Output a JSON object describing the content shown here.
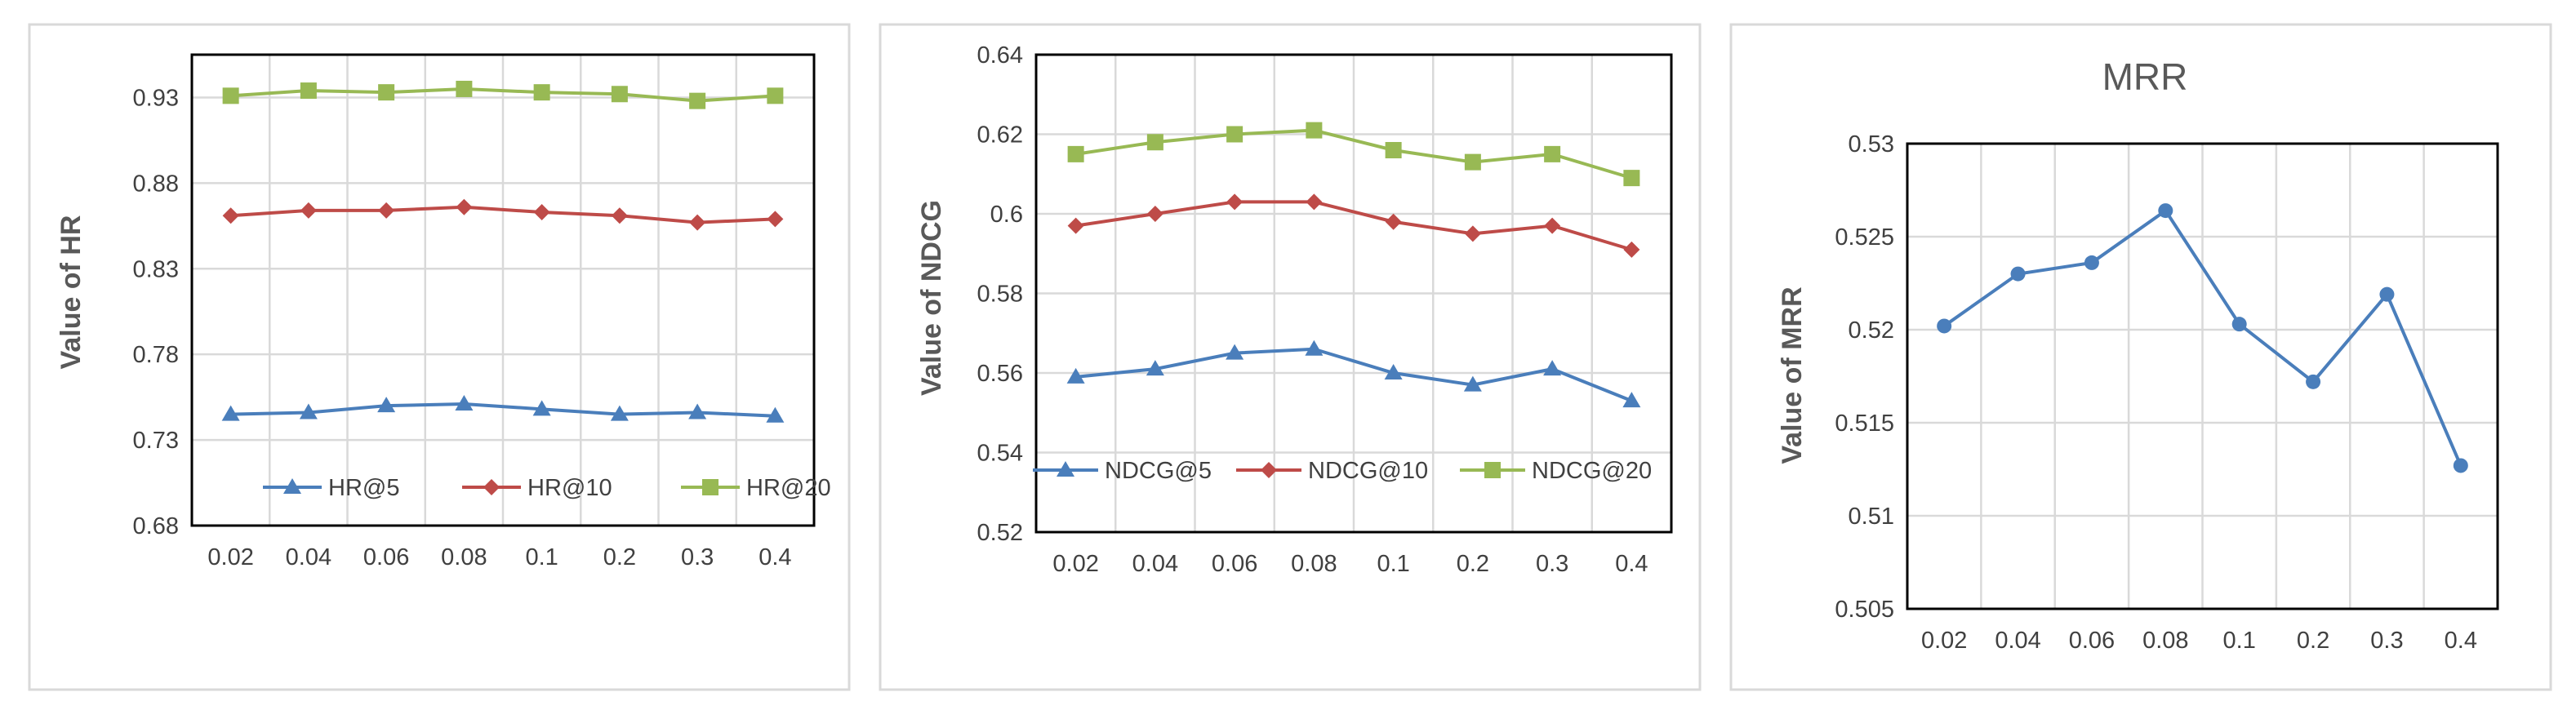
{
  "chart_data": [
    {
      "type": "line",
      "title": "",
      "xlabel": "",
      "ylabel": "Value of HR",
      "categories": [
        "0.02",
        "0.04",
        "0.06",
        "0.08",
        "0.1",
        "0.2",
        "0.3",
        "0.4"
      ],
      "yticks": [
        "0.68",
        "0.73",
        "0.78",
        "0.83",
        "0.88",
        "0.93"
      ],
      "ylim": [
        0.68,
        0.955
      ],
      "grid": "on",
      "legend_position": "bottom-inside",
      "series": [
        {
          "name": "HR@5",
          "color": "#4a7ebb",
          "marker": "triangle",
          "values": [
            0.745,
            0.746,
            0.75,
            0.751,
            0.748,
            0.745,
            0.746,
            0.744
          ]
        },
        {
          "name": "HR@10",
          "color": "#be4b48",
          "marker": "diamond",
          "values": [
            0.861,
            0.864,
            0.864,
            0.866,
            0.863,
            0.861,
            0.857,
            0.859
          ]
        },
        {
          "name": "HR@20",
          "color": "#98b954",
          "marker": "square",
          "values": [
            0.931,
            0.934,
            0.933,
            0.935,
            0.933,
            0.932,
            0.928,
            0.931
          ]
        }
      ]
    },
    {
      "type": "line",
      "title": "",
      "xlabel": "",
      "ylabel": "Value of NDCG",
      "categories": [
        "0.02",
        "0.04",
        "0.06",
        "0.08",
        "0.1",
        "0.2",
        "0.3",
        "0.4"
      ],
      "yticks": [
        "0.52",
        "0.54",
        "0.56",
        "0.58",
        "0.6",
        "0.62",
        "0.64"
      ],
      "ylim": [
        0.52,
        0.64
      ],
      "grid": "on",
      "legend_position": "bottom-inside",
      "series": [
        {
          "name": "NDCG@5",
          "color": "#4a7ebb",
          "marker": "triangle",
          "values": [
            0.559,
            0.561,
            0.565,
            0.566,
            0.56,
            0.557,
            0.561,
            0.553
          ]
        },
        {
          "name": "NDCG@10",
          "color": "#be4b48",
          "marker": "diamond",
          "values": [
            0.597,
            0.6,
            0.603,
            0.603,
            0.598,
            0.595,
            0.597,
            0.591
          ]
        },
        {
          "name": "NDCG@20",
          "color": "#98b954",
          "marker": "square",
          "values": [
            0.615,
            0.618,
            0.62,
            0.621,
            0.616,
            0.613,
            0.615,
            0.609
          ]
        }
      ]
    },
    {
      "type": "line",
      "title": "MRR",
      "xlabel": "",
      "ylabel": "Value of MRR",
      "categories": [
        "0.02",
        "0.04",
        "0.06",
        "0.08",
        "0.1",
        "0.2",
        "0.3",
        "0.4"
      ],
      "yticks": [
        "0.505",
        "0.51",
        "0.515",
        "0.52",
        "0.525",
        "0.53"
      ],
      "ylim": [
        0.505,
        0.53
      ],
      "grid": "on",
      "legend_position": "none",
      "series": [
        {
          "name": "",
          "color": "#4a7ebb",
          "marker": "circle",
          "values": [
            0.5202,
            0.523,
            0.5236,
            0.5264,
            0.5203,
            0.5172,
            0.5219,
            0.5127
          ]
        }
      ]
    }
  ]
}
